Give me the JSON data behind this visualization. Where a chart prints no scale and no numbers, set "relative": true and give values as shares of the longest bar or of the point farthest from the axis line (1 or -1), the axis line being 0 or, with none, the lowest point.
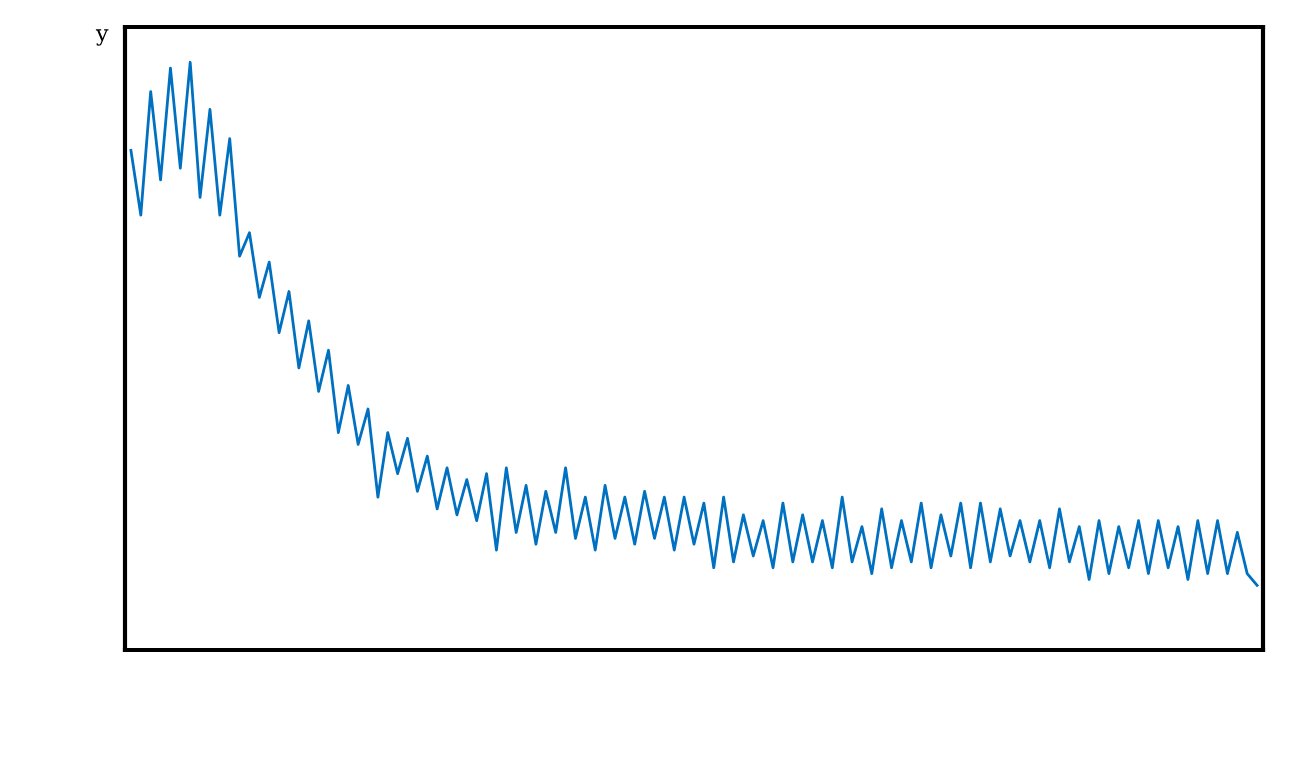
{
  "chart_data": {
    "type": "line",
    "relative": true,
    "ylabel": "y",
    "grid": false,
    "legend": false,
    "categories": [
      null,
      null,
      null,
      null,
      null,
      null,
      null,
      null,
      null,
      null,
      null,
      null,
      null,
      null,
      null,
      null,
      null,
      null,
      null,
      null,
      null,
      null,
      null,
      null,
      null,
      null,
      null,
      null,
      null,
      null,
      null,
      null,
      null,
      null,
      null,
      null,
      null,
      null,
      null,
      null,
      null,
      null,
      null,
      null,
      null,
      null,
      null,
      null,
      null,
      null,
      null,
      null,
      null,
      null,
      null,
      null,
      null,
      null,
      null,
      null,
      null,
      null,
      null,
      null,
      null,
      null,
      null,
      null,
      null,
      null,
      null,
      null,
      null,
      null,
      null,
      null,
      null,
      null,
      null,
      null,
      null,
      null,
      null,
      null,
      null,
      null,
      null,
      null,
      null,
      null,
      null,
      null,
      null,
      null,
      null,
      null,
      null,
      null,
      null,
      null,
      null,
      null,
      null,
      null,
      null,
      null,
      null,
      null,
      null,
      null,
      null,
      null,
      null,
      null,
      null
    ],
    "series": [
      {
        "color": "#0070c0",
        "values": [
          0.85,
          0.74,
          0.95,
          0.8,
          0.99,
          0.82,
          1.0,
          0.77,
          0.92,
          0.74,
          0.87,
          0.67,
          0.71,
          0.6,
          0.66,
          0.54,
          0.61,
          0.48,
          0.56,
          0.44,
          0.51,
          0.37,
          0.45,
          0.35,
          0.41,
          0.26,
          0.37,
          0.3,
          0.36,
          0.27,
          0.33,
          0.24,
          0.31,
          0.23,
          0.29,
          0.22,
          0.3,
          0.17,
          0.31,
          0.2,
          0.28,
          0.18,
          0.27,
          0.2,
          0.31,
          0.19,
          0.26,
          0.17,
          0.28,
          0.19,
          0.26,
          0.18,
          0.27,
          0.19,
          0.26,
          0.17,
          0.26,
          0.18,
          0.25,
          0.14,
          0.26,
          0.15,
          0.23,
          0.16,
          0.22,
          0.14,
          0.25,
          0.15,
          0.23,
          0.15,
          0.22,
          0.14,
          0.26,
          0.15,
          0.21,
          0.13,
          0.24,
          0.14,
          0.22,
          0.15,
          0.25,
          0.14,
          0.23,
          0.16,
          0.25,
          0.14,
          0.25,
          0.15,
          0.24,
          0.16,
          0.22,
          0.15,
          0.22,
          0.14,
          0.24,
          0.15,
          0.21,
          0.12,
          0.22,
          0.13,
          0.21,
          0.14,
          0.22,
          0.13,
          0.22,
          0.14,
          0.21,
          0.12,
          0.22,
          0.13,
          0.22,
          0.13,
          0.2,
          0.13,
          0.11
        ]
      }
    ]
  }
}
